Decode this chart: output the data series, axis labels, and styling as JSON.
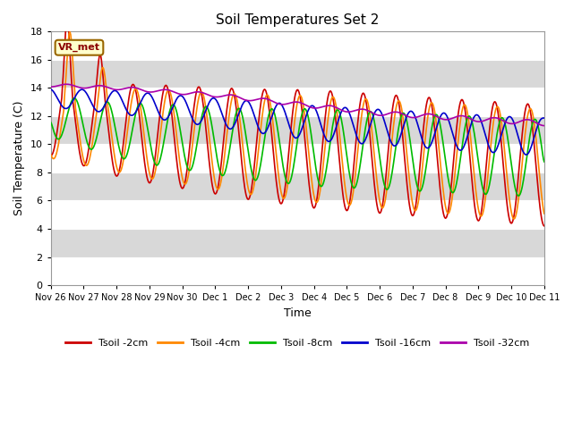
{
  "title": "Soil Temperatures Set 2",
  "xlabel": "Time",
  "ylabel": "Soil Temperature (C)",
  "ylim": [
    0,
    18
  ],
  "yticks": [
    0,
    2,
    4,
    6,
    8,
    10,
    12,
    14,
    16,
    18
  ],
  "background_color": "#ffffff",
  "plot_bg_color": "#d8d8d8",
  "grid_color": "#ffffff",
  "annotation_text": "VR_met",
  "annotation_color": "#8B0000",
  "annotation_bg": "#ffffcc",
  "x_tick_labels": [
    "Nov 26",
    "Nov 27",
    "Nov 28",
    "Nov 29",
    "Nov 30",
    "Dec 1",
    "Dec 2",
    "Dec 3",
    "Dec 4",
    "Dec 5",
    "Dec 6",
    "Dec 7",
    "Dec 8",
    "Dec 9",
    "Dec 10",
    "Dec 11"
  ],
  "series": [
    {
      "label": "Tsoil -2cm",
      "color": "#cc0000"
    },
    {
      "label": "Tsoil -4cm",
      "color": "#ff8800"
    },
    {
      "label": "Tsoil -8cm",
      "color": "#00bb00"
    },
    {
      "label": "Tsoil -16cm",
      "color": "#0000cc"
    },
    {
      "label": "Tsoil -32cm",
      "color": "#aa00aa"
    }
  ]
}
